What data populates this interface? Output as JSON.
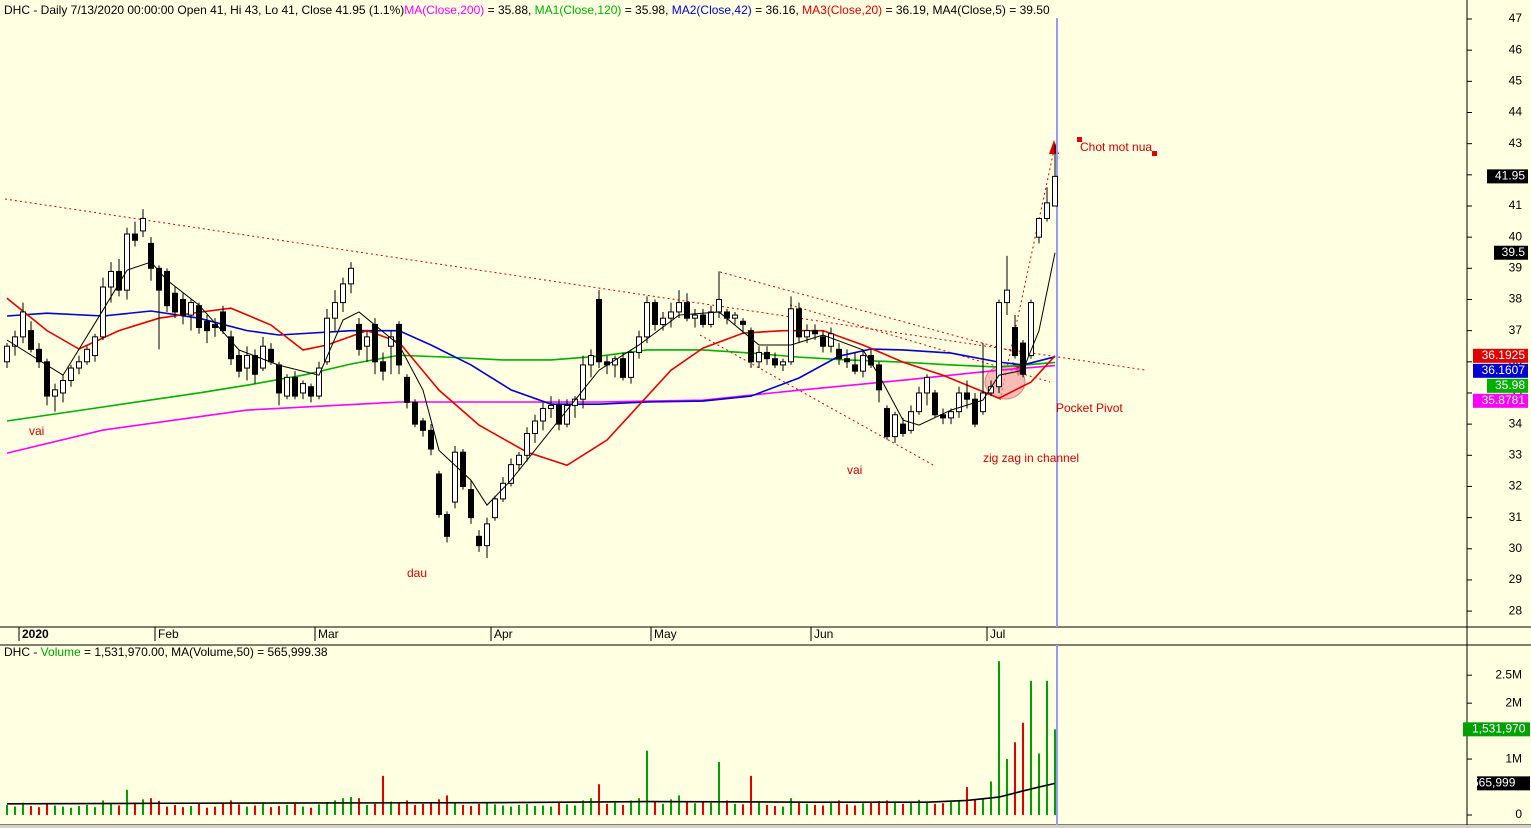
{
  "chart_data": {
    "type": "candlestick",
    "header": [
      {
        "text": "DHC - Daily 7/13/2020 00:00:00 Open 41, Hi 43, Lo 41, Close 41.95 (1.1%)",
        "color": "#000000"
      }
    ],
    "open": [
      36,
      36.5,
      36.8,
      37,
      36.4,
      36,
      34.9,
      35,
      35.4,
      35.8,
      36,
      36.2,
      36.8,
      38.4,
      38.9,
      38.3,
      40.1,
      40.2,
      39.8,
      39,
      38.9,
      38.2,
      38,
      37.5,
      37.8,
      37.3,
      37.2,
      37.6,
      36.8,
      36.2,
      35.8,
      36.2,
      35.8,
      36.4,
      35.9,
      34.9,
      35.5,
      35,
      35.2,
      34.9,
      36,
      37.4,
      37.9,
      38.5,
      37.2,
      36.5,
      37.2,
      36,
      36.5,
      37.2,
      35.5,
      34.7,
      34.1,
      33.8,
      32.4,
      31.1,
      31.5,
      33.1,
      31.9,
      30.4,
      30.1,
      31,
      31.6,
      32.1,
      32.7,
      33,
      33.7,
      34.1,
      34.5,
      34.6,
      34,
      34.6,
      34.8,
      35.9,
      38,
      36,
      35.9,
      36.1,
      35.5,
      36.3,
      36.8,
      37.9,
      37.2,
      37.4,
      37.6,
      37.9,
      37.4,
      37.5,
      37.2,
      37.6,
      37.6,
      37.4,
      37.3,
      37,
      36,
      36.3,
      36.1,
      35.9,
      36,
      37.7,
      36.8,
      37,
      36.8,
      36.5,
      36.4,
      36.1,
      35.9,
      35.7,
      36.2,
      35.9,
      34.5,
      33.6,
      34,
      33.8,
      34.4,
      35,
      35,
      34.3,
      34.2,
      34.4,
      35,
      34.8,
      34.4,
      35,
      35.2,
      37.9,
      37.1,
      36.6,
      36.2,
      40,
      40.6,
      41
    ],
    "high": [
      36.6,
      37,
      37.9,
      37.3,
      36.6,
      36.1,
      35.3,
      35.6,
      35.9,
      36.2,
      36.5,
      36.9,
      38.7,
      39.2,
      39.3,
      40.3,
      40.5,
      40.9,
      40,
      39.1,
      39,
      38.4,
      38.2,
      38,
      37.9,
      37.5,
      37.4,
      37.8,
      37,
      36.4,
      36.5,
      36.4,
      36.8,
      36.6,
      36,
      35.6,
      35.7,
      35.4,
      35.3,
      36,
      37.7,
      38.3,
      38.7,
      39.2,
      37.4,
      37,
      37.4,
      36.3,
      37,
      37.3,
      35.6,
      34.8,
      34.2,
      34,
      32.5,
      31.2,
      33.3,
      33.2,
      32.2,
      30.6,
      31,
      31.7,
      32.3,
      32.9,
      33.1,
      33.9,
      34.3,
      34.7,
      34.9,
      34.8,
      34.8,
      34.9,
      36.2,
      36.4,
      38.3,
      36.2,
      36.2,
      36.3,
      36.4,
      37,
      38.1,
      38,
      37.6,
      37.9,
      38.3,
      38.2,
      37.7,
      37.7,
      37.8,
      38.9,
      37.7,
      37.6,
      37.4,
      37.1,
      36.5,
      36.5,
      36.3,
      36.1,
      38.1,
      37.9,
      37.2,
      37.2,
      37,
      37.1,
      36.6,
      36.4,
      36.3,
      36.4,
      36.4,
      36,
      34.6,
      34.4,
      34.2,
      34.6,
      35.2,
      35.6,
      35.1,
      34.5,
      34.5,
      35.2,
      35.4,
      35,
      36.6,
      35.4,
      38,
      39.4,
      37.5,
      36.7,
      38,
      40.6,
      41.6,
      43
    ],
    "low": [
      35.8,
      36.2,
      36.6,
      36.3,
      35.8,
      34.6,
      34.4,
      34.7,
      35.2,
      35.6,
      35.9,
      36,
      36.7,
      37.9,
      38.1,
      38,
      39.7,
      40,
      38.6,
      36.4,
      37.6,
      37.4,
      37.2,
      37,
      36.9,
      36.6,
      36.8,
      36.9,
      35.9,
      35.5,
      35.4,
      35.3,
      35.7,
      35.9,
      34.6,
      34.8,
      34.8,
      34.8,
      34.7,
      34.8,
      35.9,
      37,
      37.6,
      38.2,
      36.2,
      36,
      35.6,
      35.4,
      35.6,
      35.6,
      34.5,
      33.9,
      33.6,
      33,
      31,
      30.2,
      31.3,
      31.9,
      30.8,
      29.9,
      29.7,
      30.9,
      31.5,
      32,
      32.5,
      32.8,
      33.4,
      33.8,
      34.2,
      33.8,
      33.9,
      34.2,
      34.5,
      35.5,
      35.8,
      35.6,
      35.5,
      35.4,
      35.3,
      36.1,
      36.6,
      37,
      37,
      37.1,
      37.4,
      37.3,
      37.1,
      37.1,
      37.1,
      37.4,
      37.2,
      37.2,
      36.9,
      35.8,
      35.8,
      35.9,
      35.8,
      35.7,
      35.9,
      36.6,
      36.6,
      36.7,
      36.3,
      36.3,
      35.9,
      35.8,
      35.6,
      35.5,
      35.8,
      34.7,
      33.5,
      33.4,
      33.6,
      33.7,
      34.3,
      34.6,
      34.2,
      34,
      34,
      34.2,
      34.5,
      33.9,
      34.3,
      34.9,
      35,
      37.5,
      36.1,
      35.5,
      36.1,
      39.8,
      40.5,
      41
    ],
    "close": [
      36.5,
      36.8,
      37.6,
      36.4,
      36,
      34.9,
      35.1,
      35.4,
      35.8,
      36,
      36.4,
      36.8,
      38.4,
      38.9,
      38.3,
      40.1,
      39.9,
      40.6,
      39,
      38.3,
      37.8,
      37.6,
      37.5,
      37.9,
      37.1,
      37,
      37.1,
      37,
      36.1,
      35.7,
      36.2,
      35.6,
      36.5,
      36,
      35,
      35.5,
      34.9,
      35.3,
      34.9,
      35.8,
      37.4,
      37.9,
      38.5,
      39,
      36.4,
      36.8,
      36,
      35.7,
      36.8,
      35.9,
      34.7,
      34,
      33.8,
      33.2,
      31.1,
      30.4,
      33.1,
      32,
      31,
      30.1,
      30.8,
      31.6,
      32.1,
      32.7,
      33,
      33.7,
      34.1,
      34.5,
      34.6,
      34,
      34.6,
      34.8,
      35.9,
      36.2,
      36,
      35.9,
      36.1,
      35.5,
      36.3,
      36.8,
      37.9,
      37.2,
      37.4,
      37.6,
      37.9,
      37.4,
      37.5,
      37.2,
      37.6,
      38,
      37.4,
      37.5,
      37.2,
      36,
      36.3,
      36.1,
      35.9,
      36,
      37.7,
      36.8,
      37,
      36.9,
      36.5,
      36.9,
      36.1,
      36,
      35.7,
      36.2,
      35.9,
      35.1,
      33.6,
      34.3,
      33.7,
      34.4,
      35,
      35.5,
      34.3,
      34.2,
      34.4,
      35,
      34.8,
      34,
      35,
      35.2,
      37.9,
      38.3,
      36.2,
      35.6,
      37.9,
      40.6,
      41.1,
      41.95
    ],
    "up_color": "#ffffff",
    "down_color": "#000000",
    "last_label": 41.95,
    "series": [
      {
        "name": "MA(Close,200)",
        "legend_value": " = 35.88, ",
        "color": "#ff00ff",
        "last_label": 35.8781,
        "x": [
          0,
          12,
          30,
          49,
          74,
          87,
          99,
          112,
          124,
          131
        ],
        "values": [
          33.07,
          33.81,
          34.45,
          34.71,
          34.71,
          34.77,
          35.09,
          35.41,
          35.73,
          35.88
        ]
      },
      {
        "name": "MA1(Close,120)",
        "legend_value": " = 35.98, ",
        "color": "#00b000",
        "last_label": 35.98,
        "x": [
          0,
          12,
          24,
          30,
          37,
          43,
          49,
          55,
          62,
          68,
          74,
          80,
          87,
          93,
          99,
          105,
          112,
          118,
          124,
          131
        ],
        "values": [
          34.1,
          34.55,
          35.0,
          35.25,
          35.57,
          35.93,
          36.21,
          36.15,
          36.06,
          36.06,
          36.18,
          36.38,
          36.38,
          36.28,
          36.15,
          36.06,
          35.99,
          35.9,
          35.83,
          35.98
        ]
      },
      {
        "name": "MA2(Close,42)",
        "legend_value": " = 36.16, ",
        "color": "#0000d0",
        "last_label": 36.1607,
        "x": [
          0,
          5,
          12,
          18,
          24,
          30,
          34,
          43,
          49,
          53,
          58,
          63,
          68,
          74,
          80,
          87,
          93,
          99,
          104,
          108,
          112,
          118,
          124,
          127,
          131
        ],
        "values": [
          37.47,
          37.56,
          37.47,
          37.63,
          37.4,
          37.0,
          36.86,
          37.0,
          37.0,
          36.54,
          35.9,
          35.1,
          34.64,
          34.64,
          34.71,
          34.74,
          34.9,
          35.48,
          36.18,
          36.41,
          36.38,
          36.28,
          35.99,
          35.9,
          36.16
        ]
      },
      {
        "name": "MA3(Close,20)",
        "legend_value": " = 36.19, ",
        "color": "#e00000",
        "last_label": 36.1925,
        "x": [
          0,
          5,
          9,
          14,
          19,
          24,
          28,
          33,
          37,
          40,
          45,
          49,
          54,
          59,
          65,
          70,
          75,
          79,
          83,
          87,
          92,
          97,
          102,
          107,
          112,
          117,
          120,
          124,
          128,
          131
        ],
        "values": [
          38.04,
          37.0,
          36.41,
          37.0,
          37.4,
          37.59,
          37.72,
          37.18,
          36.38,
          36.54,
          37.0,
          36.63,
          35.09,
          33.97,
          33.1,
          32.68,
          33.49,
          34.61,
          35.73,
          36.44,
          36.92,
          37.0,
          37.0,
          36.54,
          35.99,
          35.57,
          35.25,
          34.83,
          35.35,
          36.19
        ]
      },
      {
        "name": "MA4(Close,5)",
        "legend_value": " = 39.50",
        "color": "#000000",
        "last_label": 39.5,
        "x": [
          0,
          7,
          12,
          15,
          18,
          20,
          24,
          29,
          34,
          39,
          42,
          44,
          49,
          52,
          54,
          58,
          60,
          63,
          67,
          70,
          74,
          79,
          84,
          89,
          94,
          98,
          102,
          107,
          109,
          112,
          114,
          118,
          122,
          124,
          127,
          129,
          131
        ],
        "values": [
          36.7,
          35.57,
          37.66,
          38.94,
          39.2,
          38.62,
          37.82,
          36.38,
          35.89,
          35.57,
          37.34,
          37.6,
          36.54,
          35.09,
          33.16,
          32.2,
          31.4,
          32.2,
          33.49,
          34.45,
          35.73,
          36.54,
          37.5,
          37.6,
          36.54,
          36.54,
          36.86,
          36.38,
          35.57,
          34.13,
          33.97,
          34.45,
          34.77,
          35.57,
          35.73,
          37.0,
          39.5
        ]
      }
    ],
    "xticks": [
      {
        "value": 2,
        "label": "2020"
      },
      {
        "value": 19,
        "label": "Feb"
      },
      {
        "value": 39,
        "label": "Mar"
      },
      {
        "value": 61,
        "label": "Apr"
      },
      {
        "value": 81,
        "label": "May"
      },
      {
        "value": 101,
        "label": "Jun"
      },
      {
        "value": 123,
        "label": "Jul"
      }
    ],
    "ylim": [
      27.49,
      47.61
    ],
    "yticks": [
      28,
      29,
      30,
      31,
      32,
      33,
      34,
      35,
      36,
      37,
      38,
      39,
      40,
      41,
      42,
      43,
      44,
      45,
      46,
      47
    ],
    "annotations": [
      "vai",
      "dau",
      "vai",
      "zig zag in channel",
      "Pocket Pivot",
      "Chot mot nua"
    ],
    "volume": {
      "type": "bar",
      "header": [
        {
          "text": "DHC - ",
          "color": "#000000"
        },
        {
          "text": "Volume",
          "color": "#00a000"
        },
        {
          "text": " = 1,531,970.00, MA(Volume,50) = 565,999.38",
          "color": "#000000"
        }
      ],
      "up_color": "#00a000",
      "down_color": "#e00000",
      "values": [
        180000,
        150000,
        220000,
        160000,
        140000,
        200000,
        170000,
        150000,
        130000,
        160000,
        180000,
        140000,
        260000,
        200000,
        170000,
        450000,
        220000,
        280000,
        300000,
        250000,
        150000,
        180000,
        140000,
        160000,
        200000,
        130000,
        150000,
        220000,
        260000,
        190000,
        150000,
        170000,
        230000,
        140000,
        160000,
        180000,
        200000,
        150000,
        130000,
        190000,
        230000,
        260000,
        300000,
        320000,
        300000,
        180000,
        200000,
        700000,
        240000,
        220000,
        260000,
        180000,
        200000,
        230000,
        280000,
        350000,
        220000,
        180000,
        160000,
        200000,
        230000,
        190000,
        170000,
        150000,
        180000,
        200000,
        160000,
        170000,
        150000,
        230000,
        190000,
        170000,
        260000,
        300000,
        550000,
        200000,
        220000,
        180000,
        260000,
        300000,
        1150000,
        240000,
        200000,
        280000,
        350000,
        230000,
        210000,
        250000,
        220000,
        950000,
        260000,
        200000,
        190000,
        700000,
        230000,
        180000,
        160000,
        150000,
        300000,
        240000,
        200000,
        180000,
        170000,
        230000,
        260000,
        190000,
        170000,
        210000,
        220000,
        250000,
        260000,
        220000,
        200000,
        240000,
        270000,
        230000,
        200000,
        210000,
        250000,
        260000,
        500000,
        280000,
        300000,
        600000,
        2750000,
        1000000,
        1300000,
        1650000,
        2400000,
        1100000,
        2400000,
        1531970
      ],
      "last_label": {
        "value": 1531970,
        "label": "1,531,970"
      },
      "ma": {
        "color": "#000000",
        "x": [
          0,
          20,
          40,
          60,
          80,
          100,
          115,
          120,
          124,
          127,
          129,
          131
        ],
        "values": [
          200000,
          210000,
          215000,
          220000,
          240000,
          230000,
          230000,
          260000,
          320000,
          430000,
          500000,
          565999.38
        ],
        "last_label": {
          "value": 565999.38,
          "label": "565,999"
        }
      },
      "ylim": [
        0,
        3040000
      ],
      "yticks": [
        0,
        {
          "value": 1000000,
          "label": "1M"
        },
        {
          "value": 2000000,
          "label": "2M"
        },
        {
          "value": 2500000,
          "label": "2.5M"
        }
      ]
    }
  }
}
